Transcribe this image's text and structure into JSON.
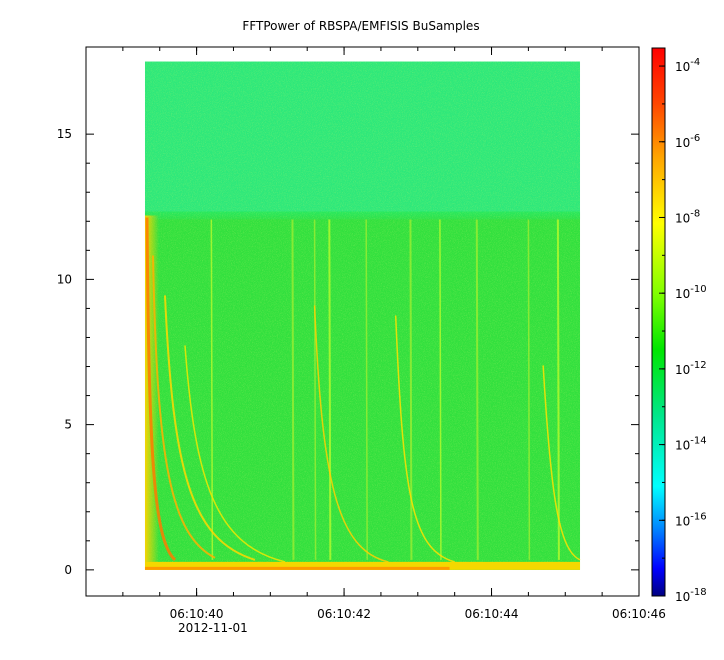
{
  "chart_data": {
    "type": "heatmap",
    "title": "FFTPower of RBSPA/EMFISIS  BuSamples",
    "xlabel": "",
    "ylabel": "",
    "x_date": "2012-11-01",
    "x_range": [
      "06:10:38.5",
      "06:10:46"
    ],
    "x_ticks": [
      "06:10:40",
      "06:10:42",
      "06:10:44",
      "06:10:46"
    ],
    "ylim": [
      -0.9,
      18
    ],
    "y_ticks": [
      0,
      5,
      10,
      15
    ],
    "data_extent": {
      "x": [
        "06:10:39.3",
        "06:10:45.2"
      ],
      "y": [
        0,
        17.5
      ]
    },
    "band_edge_y": 12.2,
    "colorbar": {
      "scale": "log",
      "range": [
        1e-18,
        0.0003
      ],
      "ticks": [
        {
          "value": 0.0001,
          "base": "10",
          "exp": "-4"
        },
        {
          "value": 1e-06,
          "base": "10",
          "exp": "-6"
        },
        {
          "value": 1e-08,
          "base": "10",
          "exp": "-8"
        },
        {
          "value": 1e-10,
          "base": "10",
          "exp": "-10"
        },
        {
          "value": 1e-12,
          "base": "10",
          "exp": "-12"
        },
        {
          "value": 1e-14,
          "base": "10",
          "exp": "-14"
        },
        {
          "value": 1e-16,
          "base": "10",
          "exp": "-16"
        },
        {
          "value": 1e-18,
          "base": "10",
          "exp": "-18"
        }
      ],
      "colors": [
        "#000080",
        "#0000ff",
        "#0080ff",
        "#00ffff",
        "#00e68a",
        "#00e600",
        "#7fff00",
        "#ffff00",
        "#ffa500",
        "#ff4500",
        "#ff0000"
      ]
    },
    "grid": false,
    "legend": "colorbar-right"
  }
}
